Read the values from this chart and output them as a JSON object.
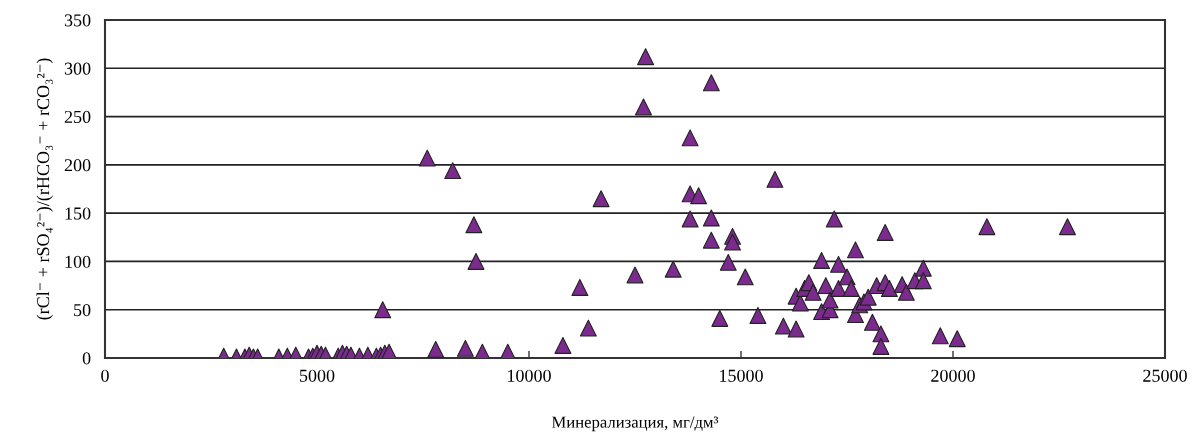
{
  "chart_data": {
    "type": "scatter",
    "xlabel": "Минерализация, мг/дм³",
    "ylabel": "(rCl⁻ + rSO₄²⁻)/(rHCO₃⁻ + rCO₃²⁻)",
    "x": [
      2800,
      3100,
      3300,
      3400,
      3500,
      3600,
      4100,
      4300,
      4500,
      4800,
      4900,
      5000,
      5100,
      5200,
      5500,
      5600,
      5700,
      5800,
      6000,
      6200,
      6400,
      6500,
      6600,
      6700,
      6550,
      7600,
      7800,
      8200,
      8500,
      8700,
      8750,
      8900,
      9500,
      10800,
      11200,
      11400,
      11700,
      12500,
      12700,
      12750,
      13400,
      13800,
      13800,
      14000,
      13800,
      14300,
      14300,
      14300,
      14500,
      14700,
      14800,
      14800,
      15100,
      15400,
      15800,
      16000,
      16300,
      16300,
      16400,
      16500,
      16600,
      16700,
      16900,
      16900,
      17000,
      17100,
      17100,
      17200,
      17300,
      17300,
      17500,
      17600,
      17700,
      17700,
      17800,
      17900,
      18000,
      18100,
      18200,
      18300,
      18300,
      18400,
      18400,
      18500,
      18800,
      18900,
      19100,
      19300,
      19300,
      19700,
      20100,
      20800,
      22700
    ],
    "values": [
      2,
      1,
      1,
      3,
      1,
      1,
      1,
      2,
      3,
      1,
      2,
      5,
      4,
      3,
      2,
      5,
      4,
      3,
      2,
      3,
      2,
      3,
      5,
      6,
      50,
      207,
      9,
      194,
      10,
      138,
      100,
      6,
      6,
      13,
      73,
      31,
      165,
      86,
      260,
      312,
      92,
      228,
      170,
      168,
      144,
      145,
      122,
      285,
      41,
      99,
      126,
      120,
      84,
      44,
      185,
      33,
      30,
      64,
      57,
      72,
      78,
      68,
      101,
      48,
      75,
      50,
      60,
      144,
      97,
      72,
      84,
      72,
      45,
      112,
      55,
      58,
      63,
      37,
      75,
      25,
      12,
      78,
      130,
      72,
      76,
      68,
      80,
      93,
      80,
      23,
      20,
      136,
      136
    ],
    "color": "#7b2a8e",
    "marker": "triangle",
    "xlim": [
      0,
      25000
    ],
    "xticks": [
      0,
      5000,
      10000,
      15000,
      20000,
      25000
    ],
    "ylim": [
      0,
      350
    ],
    "yticks": [
      0,
      50,
      100,
      150,
      200,
      250,
      300,
      350
    ],
    "grid": "y",
    "legend": false
  }
}
